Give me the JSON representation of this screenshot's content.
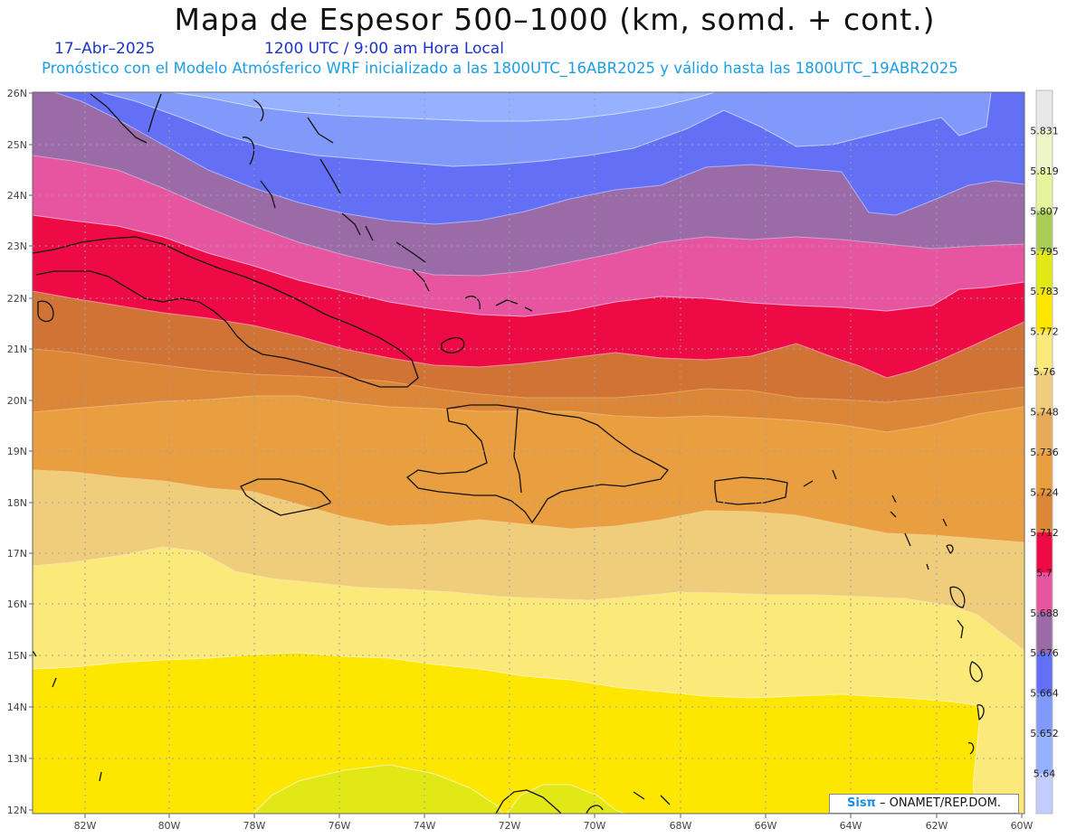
{
  "header": {
    "title": "Mapa de Espesor 500–1000 (km, somd. + cont.)",
    "date": "17–Abr–2025",
    "time": "1200 UTC / 9:00 am Hora Local",
    "model_info": "Pronóstico con el Modelo Atmósferico WRF inicializado a las 1800UTC_16ABR2025 y válido hasta las  1800UTC_19ABR2025"
  },
  "map": {
    "lat_labels": [
      "26N",
      "25N",
      "24N",
      "23N",
      "22N",
      "21N",
      "20N",
      "19N",
      "18N",
      "17N",
      "16N",
      "15N",
      "14N",
      "13N",
      "12N"
    ],
    "lon_labels": [
      "82W",
      "80W",
      "78W",
      "76W",
      "74W",
      "72W",
      "70W",
      "68W",
      "66W",
      "64W",
      "62W",
      "60W"
    ],
    "band_colors": [
      "#fde600",
      "#fbe97a",
      "#efcd7a",
      "#e99f40",
      "#dc8638",
      "#ee0a45",
      "#e755a1",
      "#9a6ba7",
      "#6370f5",
      "#8099fa",
      "#95b1ff"
    ],
    "greenish_color": "#e2e816",
    "grid_color": "#9aa0a6"
  },
  "colorbar": {
    "labels": [
      "5.831",
      "5.819",
      "5.807",
      "5.795",
      "5.783",
      "5.772",
      "5.76",
      "5.748",
      "5.736",
      "5.724",
      "5.712",
      "5.7",
      "5.688",
      "5.676",
      "5.664",
      "5.652",
      "5.64"
    ],
    "colors": [
      "#e8e8e8",
      "#eef5c8",
      "#e4f59c",
      "#a9cc56",
      "#e2e816",
      "#fde600",
      "#fbe97a",
      "#efcd7a",
      "#e9a95a",
      "#e99f40",
      "#dc8638",
      "#ee0a45",
      "#e755a1",
      "#9a6ba7",
      "#6370f5",
      "#8099fa",
      "#95b1ff",
      "#c2ccff"
    ]
  },
  "credit": {
    "sis": "Sisπ",
    "rest": " – ONAMET/REP.DOM."
  }
}
